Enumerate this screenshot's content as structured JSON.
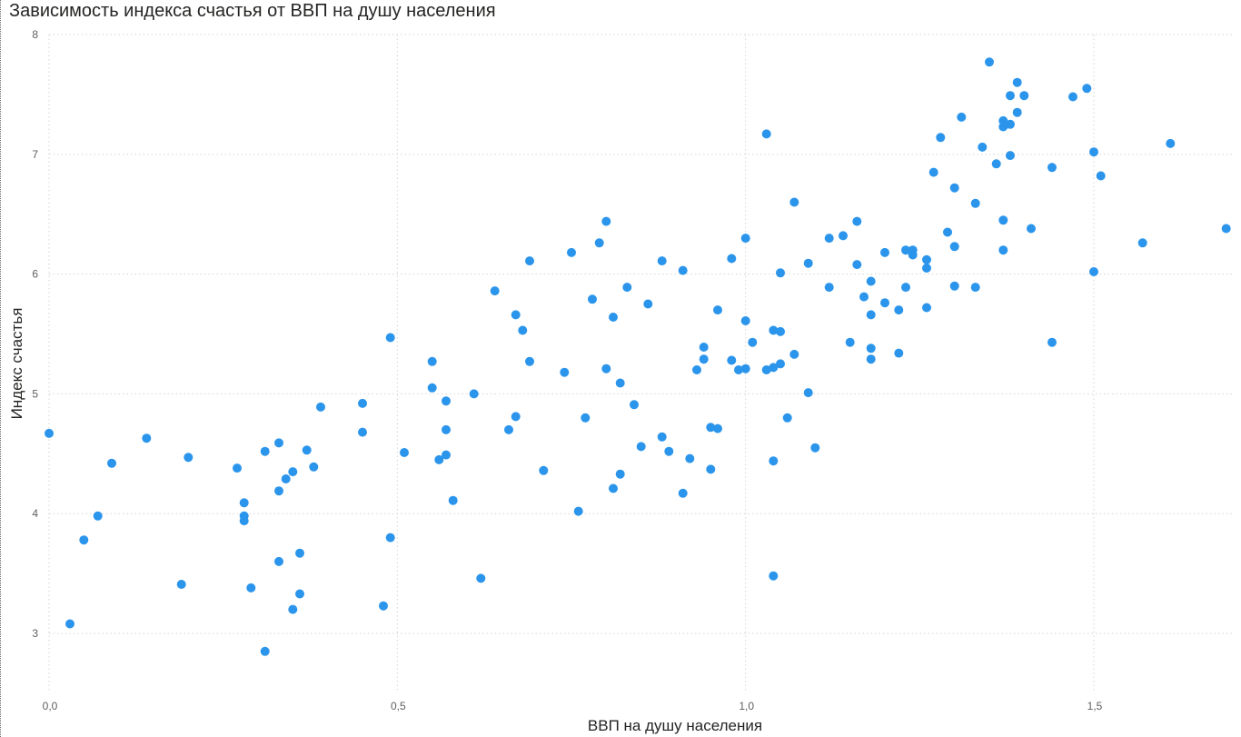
{
  "chart_data": {
    "type": "scatter",
    "title": "Зависимость индекса счастья от ВВП на душу населения",
    "xlabel": "ВВП на душу населения",
    "ylabel": "Индекс счастья",
    "xlim": [
      0,
      1.7
    ],
    "ylim": [
      2.5,
      8.0
    ],
    "x_ticks": [
      "0,0",
      "0,5",
      "1,0",
      "1,5"
    ],
    "x_tick_values": [
      0,
      0.5,
      1.0,
      1.5
    ],
    "y_ticks": [
      "3",
      "4",
      "5",
      "6",
      "7",
      "8"
    ],
    "y_tick_values": [
      3,
      4,
      5,
      6,
      7,
      8
    ],
    "grid": true,
    "point_color": "#2b95ec",
    "points": [
      [
        0.0,
        4.67
      ],
      [
        0.03,
        3.08
      ],
      [
        0.05,
        3.78
      ],
      [
        0.07,
        3.98
      ],
      [
        0.09,
        4.42
      ],
      [
        0.14,
        4.63
      ],
      [
        0.19,
        3.41
      ],
      [
        0.2,
        4.47
      ],
      [
        0.27,
        4.38
      ],
      [
        0.28,
        4.09
      ],
      [
        0.28,
        3.98
      ],
      [
        0.28,
        3.94
      ],
      [
        0.29,
        3.38
      ],
      [
        0.31,
        4.52
      ],
      [
        0.31,
        2.85
      ],
      [
        0.33,
        3.6
      ],
      [
        0.33,
        4.59
      ],
      [
        0.33,
        4.19
      ],
      [
        0.34,
        4.29
      ],
      [
        0.35,
        4.35
      ],
      [
        0.35,
        3.2
      ],
      [
        0.36,
        3.33
      ],
      [
        0.36,
        3.67
      ],
      [
        0.37,
        4.53
      ],
      [
        0.38,
        4.39
      ],
      [
        0.39,
        4.89
      ],
      [
        0.45,
        4.92
      ],
      [
        0.45,
        4.68
      ],
      [
        0.48,
        3.23
      ],
      [
        0.49,
        3.8
      ],
      [
        0.49,
        5.47
      ],
      [
        0.51,
        4.51
      ],
      [
        0.55,
        5.05
      ],
      [
        0.55,
        5.27
      ],
      [
        0.56,
        4.45
      ],
      [
        0.57,
        4.49
      ],
      [
        0.57,
        4.94
      ],
      [
        0.57,
        4.7
      ],
      [
        0.58,
        4.11
      ],
      [
        0.61,
        5.0
      ],
      [
        0.62,
        3.46
      ],
      [
        0.64,
        5.86
      ],
      [
        0.66,
        4.7
      ],
      [
        0.67,
        4.81
      ],
      [
        0.67,
        5.66
      ],
      [
        0.68,
        5.53
      ],
      [
        0.69,
        6.11
      ],
      [
        0.69,
        5.27
      ],
      [
        0.71,
        4.36
      ],
      [
        0.74,
        5.18
      ],
      [
        0.75,
        6.18
      ],
      [
        0.76,
        4.02
      ],
      [
        0.77,
        4.8
      ],
      [
        0.78,
        5.79
      ],
      [
        0.79,
        6.26
      ],
      [
        0.8,
        6.44
      ],
      [
        0.8,
        5.21
      ],
      [
        0.81,
        5.64
      ],
      [
        0.81,
        4.21
      ],
      [
        0.82,
        5.09
      ],
      [
        0.82,
        4.33
      ],
      [
        0.83,
        5.89
      ],
      [
        0.84,
        4.91
      ],
      [
        0.85,
        4.56
      ],
      [
        0.86,
        5.75
      ],
      [
        0.88,
        4.64
      ],
      [
        0.88,
        6.11
      ],
      [
        0.89,
        4.52
      ],
      [
        0.91,
        6.03
      ],
      [
        0.91,
        4.17
      ],
      [
        0.92,
        4.46
      ],
      [
        0.93,
        5.2
      ],
      [
        0.94,
        5.39
      ],
      [
        0.94,
        5.29
      ],
      [
        0.95,
        4.72
      ],
      [
        0.95,
        4.37
      ],
      [
        0.96,
        4.71
      ],
      [
        0.96,
        5.7
      ],
      [
        0.98,
        6.13
      ],
      [
        0.98,
        5.28
      ],
      [
        0.99,
        5.2
      ],
      [
        1.0,
        5.61
      ],
      [
        1.0,
        5.21
      ],
      [
        1.0,
        6.3
      ],
      [
        1.01,
        5.43
      ],
      [
        1.03,
        5.2
      ],
      [
        1.03,
        7.17
      ],
      [
        1.04,
        5.53
      ],
      [
        1.04,
        5.22
      ],
      [
        1.04,
        4.44
      ],
      [
        1.04,
        3.48
      ],
      [
        1.05,
        6.01
      ],
      [
        1.05,
        5.52
      ],
      [
        1.05,
        5.25
      ],
      [
        1.06,
        4.8
      ],
      [
        1.07,
        5.33
      ],
      [
        1.07,
        6.6
      ],
      [
        1.09,
        5.01
      ],
      [
        1.09,
        6.09
      ],
      [
        1.1,
        4.55
      ],
      [
        1.12,
        5.89
      ],
      [
        1.12,
        6.3
      ],
      [
        1.14,
        6.32
      ],
      [
        1.15,
        5.43
      ],
      [
        1.16,
        6.44
      ],
      [
        1.16,
        6.08
      ],
      [
        1.17,
        5.81
      ],
      [
        1.18,
        5.66
      ],
      [
        1.18,
        5.38
      ],
      [
        1.18,
        5.29
      ],
      [
        1.18,
        5.94
      ],
      [
        1.2,
        5.76
      ],
      [
        1.2,
        6.18
      ],
      [
        1.22,
        5.7
      ],
      [
        1.22,
        5.34
      ],
      [
        1.23,
        6.2
      ],
      [
        1.23,
        5.89
      ],
      [
        1.24,
        6.16
      ],
      [
        1.24,
        6.2
      ],
      [
        1.26,
        6.12
      ],
      [
        1.26,
        6.05
      ],
      [
        1.26,
        5.72
      ],
      [
        1.27,
        6.85
      ],
      [
        1.28,
        7.14
      ],
      [
        1.29,
        6.35
      ],
      [
        1.3,
        6.23
      ],
      [
        1.3,
        6.72
      ],
      [
        1.3,
        5.9
      ],
      [
        1.31,
        7.31
      ],
      [
        1.33,
        6.59
      ],
      [
        1.33,
        5.89
      ],
      [
        1.34,
        7.06
      ],
      [
        1.35,
        7.77
      ],
      [
        1.36,
        6.92
      ],
      [
        1.37,
        6.2
      ],
      [
        1.37,
        7.28
      ],
      [
        1.37,
        6.45
      ],
      [
        1.37,
        7.23
      ],
      [
        1.38,
        6.99
      ],
      [
        1.38,
        7.25
      ],
      [
        1.38,
        7.49
      ],
      [
        1.39,
        7.6
      ],
      [
        1.39,
        7.35
      ],
      [
        1.4,
        7.49
      ],
      [
        1.41,
        6.38
      ],
      [
        1.44,
        6.89
      ],
      [
        1.44,
        5.43
      ],
      [
        1.47,
        7.48
      ],
      [
        1.49,
        7.55
      ],
      [
        1.5,
        7.02
      ],
      [
        1.5,
        6.02
      ],
      [
        1.51,
        6.82
      ],
      [
        1.57,
        6.26
      ],
      [
        1.61,
        7.09
      ],
      [
        1.69,
        6.38
      ]
    ]
  }
}
